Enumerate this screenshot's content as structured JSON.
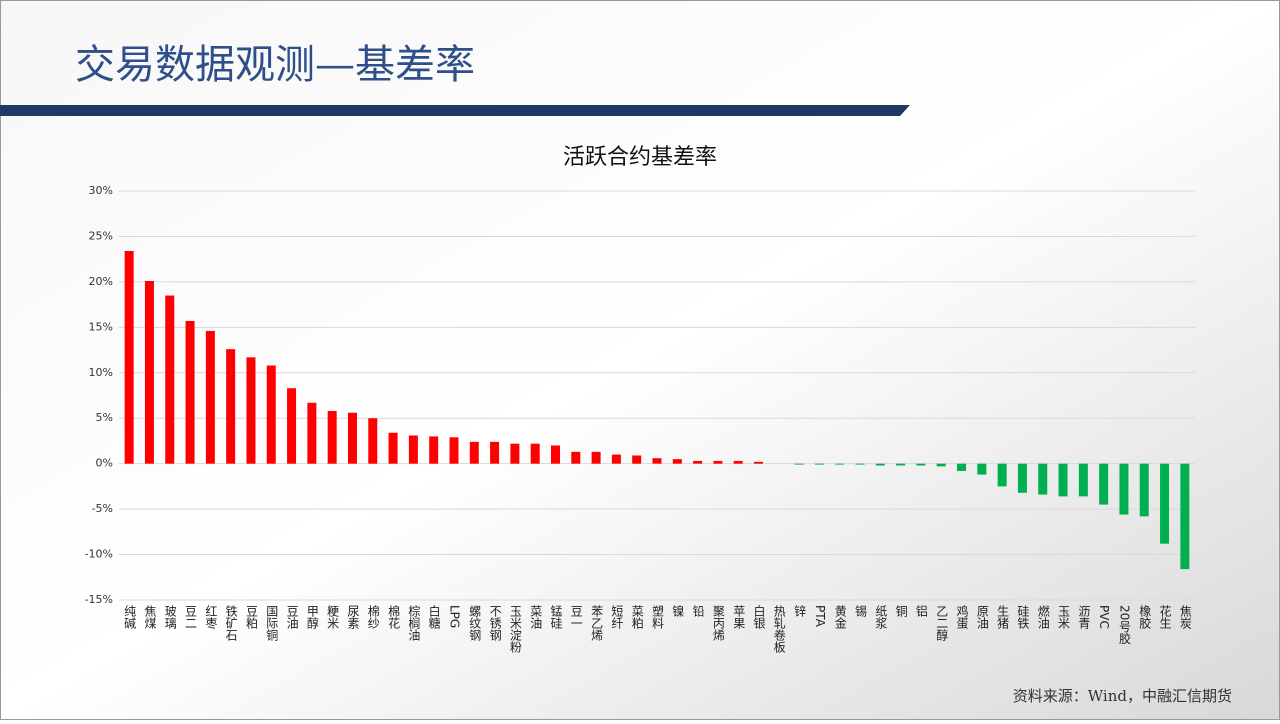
{
  "header": {
    "title": "交易数据观测—基差率"
  },
  "chart_data": {
    "type": "bar",
    "title": "活跃合约基差率",
    "categories": [
      "纯碱",
      "焦煤",
      "玻璃",
      "豆二",
      "红枣",
      "铁矿石",
      "豆粕",
      "国际铜",
      "豆油",
      "甲醇",
      "粳米",
      "尿素",
      "棉纱",
      "棉花",
      "棕榈油",
      "白糖",
      "LPG",
      "螺纹钢",
      "不锈钢",
      "玉米淀粉",
      "菜油",
      "锰硅",
      "豆一",
      "苯乙烯",
      "短纤",
      "菜粕",
      "塑料",
      "镍",
      "铅",
      "聚丙烯",
      "苹果",
      "白银",
      "热轧卷板",
      "锌",
      "PTA",
      "黄金",
      "锡",
      "纸浆",
      "铜",
      "铝",
      "乙二醇",
      "鸡蛋",
      "原油",
      "生猪",
      "硅铁",
      "燃油",
      "玉米",
      "沥青",
      "PVC",
      "20号胶",
      "橡胶",
      "花生",
      "焦炭"
    ],
    "values": [
      23.4,
      20.1,
      18.5,
      15.7,
      14.6,
      12.6,
      11.7,
      10.8,
      8.3,
      6.7,
      5.8,
      5.6,
      5.0,
      3.4,
      3.1,
      3.0,
      2.9,
      2.4,
      2.4,
      2.2,
      2.2,
      2.0,
      1.3,
      1.3,
      1.0,
      0.9,
      0.6,
      0.5,
      0.3,
      0.3,
      0.3,
      0.2,
      0.0,
      -0.1,
      -0.1,
      -0.1,
      -0.1,
      -0.2,
      -0.2,
      -0.2,
      -0.3,
      -0.8,
      -1.2,
      -2.5,
      -3.2,
      -3.4,
      -3.6,
      -3.6,
      -4.5,
      -5.6,
      -5.8,
      -8.8,
      -11.6
    ],
    "positive_color": "#ff0000",
    "negative_color": "#00b050",
    "ylim": [
      -15,
      30
    ],
    "yticks": [
      {
        "value": -15,
        "label": "-15%"
      },
      {
        "value": -10,
        "label": "-10%"
      },
      {
        "value": -5,
        "label": "-5%"
      },
      {
        "value": 0,
        "label": "0%"
      },
      {
        "value": 5,
        "label": "5%"
      },
      {
        "value": 10,
        "label": "10%"
      },
      {
        "value": 15,
        "label": "15%"
      },
      {
        "value": 20,
        "label": "20%"
      },
      {
        "value": 25,
        "label": "25%"
      },
      {
        "value": 30,
        "label": "30%"
      }
    ],
    "grid": true
  },
  "footer": {
    "source": "资料来源：Wind，中融汇信期货"
  }
}
